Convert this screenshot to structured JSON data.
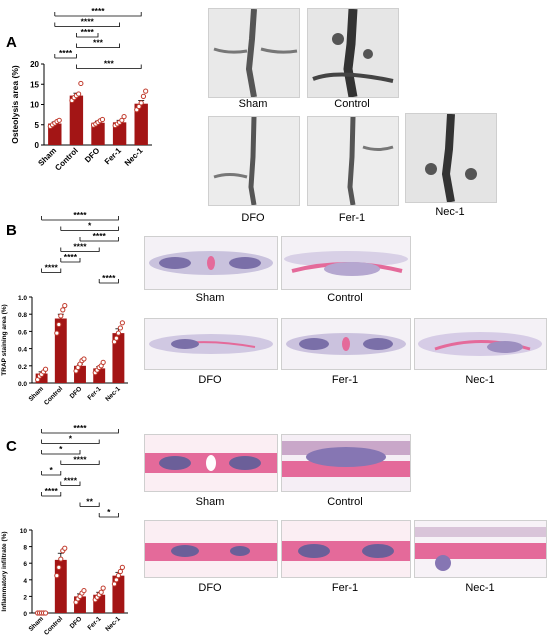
{
  "panels": [
    {
      "letter": "A",
      "chart_data": {
        "type": "bar",
        "categories": [
          "Sham",
          "Control",
          "DFO",
          "Fer-1",
          "Nec-1"
        ],
        "values": [
          5.3,
          12.2,
          5.5,
          5.6,
          10.2
        ],
        "errors": [
          0.4,
          0.6,
          0.4,
          0.5,
          0.8
        ],
        "points": [
          [
            4.6,
            5.0,
            5.4,
            5.8,
            6.1
          ],
          [
            11.0,
            11.7,
            12.2,
            12.6,
            15.2
          ],
          [
            4.9,
            5.2,
            5.6,
            6.0,
            6.3
          ],
          [
            4.8,
            5.2,
            5.6,
            6.1,
            7.0
          ],
          [
            8.7,
            9.5,
            10.4,
            12.0,
            13.3
          ]
        ],
        "ylabel": "Osteolysis area (%)",
        "ylim": [
          0,
          20
        ],
        "yticks": [
          0,
          5,
          10,
          15,
          20
        ],
        "brackets": [
          {
            "from": 0,
            "to": 4,
            "label": "****"
          },
          {
            "from": 0,
            "to": 3,
            "label": "****"
          },
          {
            "from": 1,
            "to": 2,
            "label": "****"
          },
          {
            "from": 1,
            "to": 3,
            "label": "***"
          },
          {
            "from": 0,
            "to": 1,
            "label": "****"
          },
          {
            "from": 1,
            "to": 4,
            "label": "***"
          }
        ]
      },
      "images": [
        "Sham",
        "Control",
        "DFO",
        "Fer-1",
        "Nec-1"
      ]
    },
    {
      "letter": "B",
      "chart_data": {
        "type": "bar",
        "categories": [
          "Sham",
          "Control",
          "DFO",
          "Fer-1",
          "Nec-1"
        ],
        "values": [
          0.11,
          0.75,
          0.2,
          0.17,
          0.58
        ],
        "errors": [
          0.02,
          0.05,
          0.02,
          0.02,
          0.05
        ],
        "points": [
          [
            0.04,
            0.08,
            0.1,
            0.13,
            0.16
          ],
          [
            0.58,
            0.68,
            0.78,
            0.85,
            0.9
          ],
          [
            0.14,
            0.18,
            0.22,
            0.26,
            0.28
          ],
          [
            0.12,
            0.15,
            0.18,
            0.2,
            0.24
          ],
          [
            0.48,
            0.52,
            0.58,
            0.64,
            0.7
          ]
        ],
        "ylabel": "TRAP staining area (%)",
        "ylim": [
          0,
          1.0
        ],
        "yticks": [
          0.0,
          0.2,
          0.4,
          0.6,
          0.8,
          1.0
        ],
        "brackets": [
          {
            "from": 0,
            "to": 4,
            "label": "****"
          },
          {
            "from": 1,
            "to": 4,
            "label": "*"
          },
          {
            "from": 2,
            "to": 4,
            "label": "****"
          },
          {
            "from": 1,
            "to": 3,
            "label": "****"
          },
          {
            "from": 1,
            "to": 2,
            "label": "****"
          },
          {
            "from": 0,
            "to": 1,
            "label": "****"
          },
          {
            "from": 3,
            "to": 4,
            "label": "****"
          }
        ]
      },
      "images": [
        "Sham",
        "Control",
        "DFO",
        "Fer-1",
        "Nec-1"
      ]
    },
    {
      "letter": "C",
      "chart_data": {
        "type": "bar",
        "categories": [
          "Sham",
          "Control",
          "DFO",
          "Fer-1",
          "Nec-1"
        ],
        "values": [
          0.0,
          6.4,
          2.0,
          2.2,
          4.5
        ],
        "errors": [
          0.05,
          0.8,
          0.3,
          0.3,
          0.4
        ],
        "points": [
          [
            0.0,
            0.0,
            0.0,
            0.0,
            0.0
          ],
          [
            4.5,
            5.5,
            6.5,
            7.5,
            7.8
          ],
          [
            1.3,
            1.7,
            2.0,
            2.4,
            2.7
          ],
          [
            1.6,
            1.9,
            2.2,
            2.5,
            3.0
          ],
          [
            3.5,
            4.0,
            4.5,
            5.0,
            5.5
          ]
        ],
        "ylabel": "Inflammatory infiltrate (%)",
        "ylim": [
          0,
          10
        ],
        "yticks": [
          0,
          2,
          4,
          6,
          8,
          10
        ],
        "brackets": [
          {
            "from": 0,
            "to": 4,
            "label": "****"
          },
          {
            "from": 0,
            "to": 3,
            "label": "*"
          },
          {
            "from": 0,
            "to": 2,
            "label": "*"
          },
          {
            "from": 1,
            "to": 3,
            "label": "****"
          },
          {
            "from": 0,
            "to": 1,
            "label": "*"
          },
          {
            "from": 1,
            "to": 2,
            "label": "****"
          },
          {
            "from": 0,
            "to": 1,
            "label": "****"
          },
          {
            "from": 2,
            "to": 3,
            "label": "**"
          },
          {
            "from": 3,
            "to": 4,
            "label": "*"
          }
        ]
      },
      "images": [
        "Sham",
        "Control",
        "DFO",
        "Fer-1",
        "Nec-1"
      ]
    }
  ],
  "colors": {
    "bar": "#a31515",
    "point": "#c0392b",
    "pinkTissue": "#e46a9a",
    "purpleTissue": "#7a6fa8",
    "microCT": "#8f8f8f"
  }
}
